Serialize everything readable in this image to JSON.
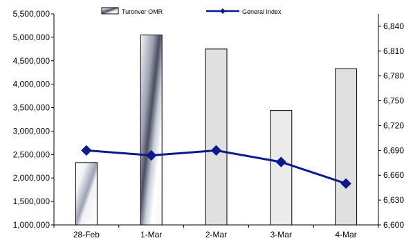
{
  "chart_data": {
    "type": "bar",
    "categories": [
      "28-Feb",
      "1-Mar",
      "2-Mar",
      "3-Mar",
      "4-Mar"
    ],
    "series": [
      {
        "name": "Turonver OMR",
        "type": "bar",
        "axis": "left",
        "values": [
          2330000,
          5050000,
          4750000,
          3440000,
          4330000
        ]
      },
      {
        "name": "General Index",
        "type": "line",
        "axis": "right",
        "values": [
          6690,
          6684,
          6690,
          6676,
          6650
        ]
      }
    ],
    "left_axis": {
      "min": 1000000,
      "max": 5500000,
      "step": 500000,
      "ticks": [
        "1,000,000",
        "1,500,000",
        "2,000,000",
        "2,500,000",
        "3,000,000",
        "3,500,000",
        "4,000,000",
        "4,500,000",
        "5,000,000",
        "5,500,000"
      ]
    },
    "right_axis": {
      "min": 6600,
      "max": 6855,
      "ticks": [
        "6,600",
        "6,630",
        "6,660",
        "6,690",
        "6,720",
        "6,750",
        "6,780",
        "6,810",
        "6,840"
      ]
    },
    "title": "",
    "xlabel": "",
    "ylabel": "",
    "grid": false,
    "legend_position": "top",
    "colors": {
      "bar_fill": "#e0e0e0",
      "bar_highlight_dark": "#4a4e5e",
      "line": "#0a1a8c",
      "marker": "#0a1a8c"
    }
  }
}
